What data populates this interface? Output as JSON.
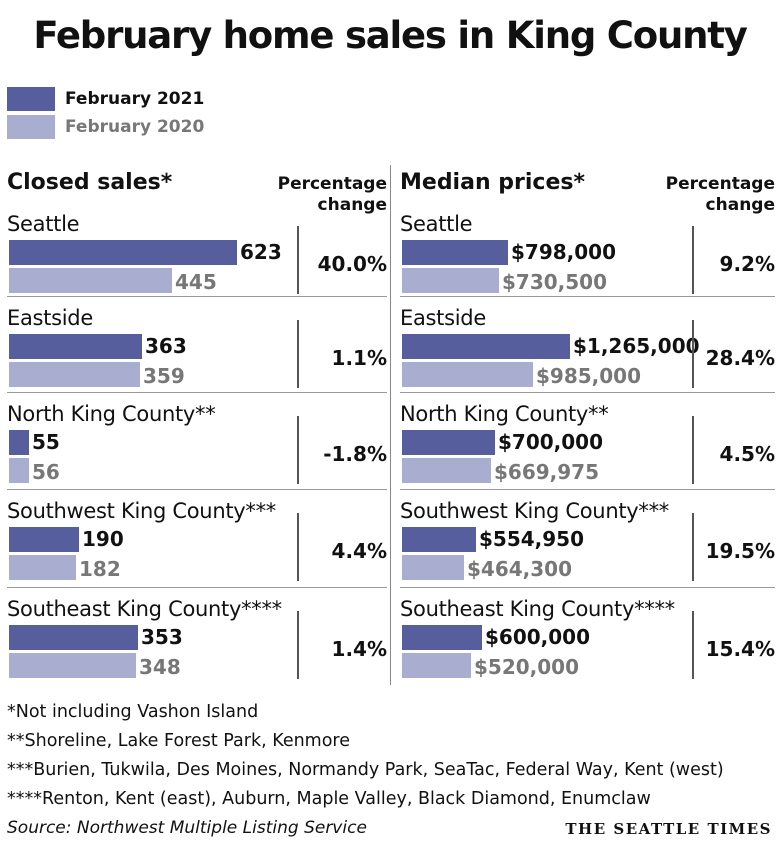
{
  "title": "February home sales in King County",
  "legend": {
    "series_2021": "February 2021",
    "series_2020": "February 2020",
    "color_2021": "#575e9e",
    "color_2020": "#a9adcf"
  },
  "chart_data": [
    {
      "type": "bar",
      "title": "Closed sales*",
      "pct_label_line1": "Percentage",
      "pct_label_line2": "change",
      "categories": [
        "Seattle",
        "Eastside",
        "North King County**",
        "Southwest King County***",
        "Southeast King County****"
      ],
      "series": [
        {
          "name": "February 2021",
          "values": [
            623,
            363,
            55,
            190,
            353
          ],
          "labels": [
            "623",
            "363",
            "55",
            "190",
            "353"
          ]
        },
        {
          "name": "February 2020",
          "values": [
            445,
            359,
            56,
            182,
            348
          ],
          "labels": [
            "445",
            "359",
            "56",
            "182",
            "348"
          ]
        }
      ],
      "pct_change": [
        "40.0%",
        "1.1%",
        "-1.8%",
        "4.4%",
        "1.4%"
      ],
      "xlim": [
        0,
        623
      ]
    },
    {
      "type": "bar",
      "title": "Median prices*",
      "pct_label_line1": "Percentage",
      "pct_label_line2": "change",
      "categories": [
        "Seattle",
        "Eastside",
        "North King County**",
        "Southwest King County***",
        "Southeast King County****"
      ],
      "series": [
        {
          "name": "February 2021",
          "values": [
            798000,
            1265000,
            700000,
            554950,
            600000
          ],
          "labels": [
            "$798,000",
            "$1,265,000",
            "$700,000",
            "$554,950",
            "$600,000"
          ]
        },
        {
          "name": "February 2020",
          "values": [
            730500,
            985000,
            669975,
            464300,
            520000
          ],
          "labels": [
            "$730,500",
            "$985,000",
            "$669,975",
            "$464,300",
            "$520,000"
          ]
        }
      ],
      "pct_change": [
        "9.2%",
        "28.4%",
        "4.5%",
        "19.5%",
        "15.4%"
      ],
      "xlim": [
        0,
        1265000
      ]
    }
  ],
  "notes": [
    "*Not including Vashon Island",
    "**Shoreline, Lake Forest Park, Kenmore",
    "***Burien, Tukwila, Des Moines, Normandy Park, SeaTac, Federal Way, Kent (west)",
    "****Renton, Kent (east), Auburn, Maple Valley, Black Diamond, Enumclaw"
  ],
  "source": "Source: Northwest Multiple Listing Service",
  "brand": "THE SEATTLE TIMES"
}
